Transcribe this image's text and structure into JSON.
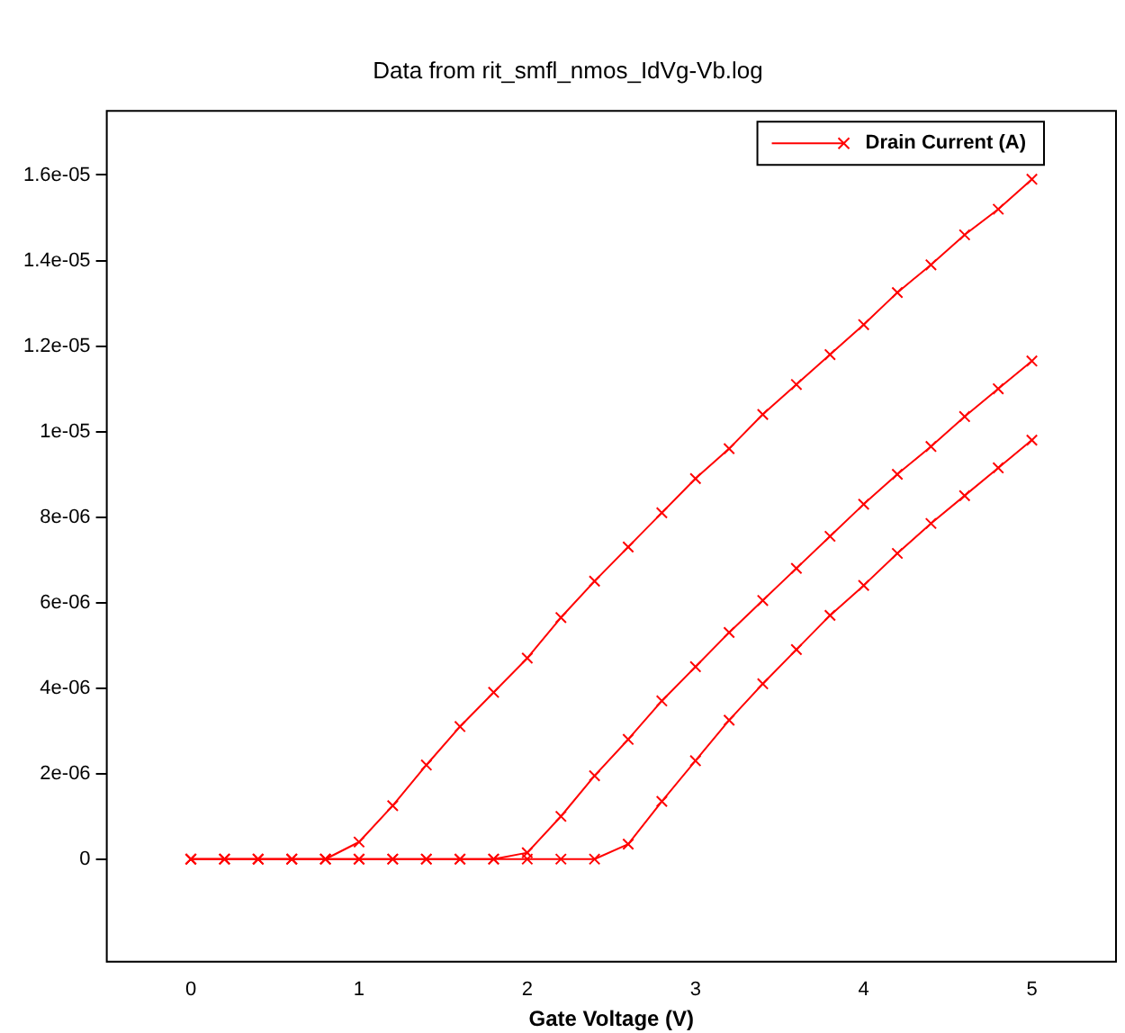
{
  "chart_data": {
    "type": "line",
    "subtitle": "Data from rit_smfl_nmos_IdVg-Vb.log",
    "xlabel": "Gate Voltage (V)",
    "x": [
      0,
      0.2,
      0.4,
      0.6,
      0.8,
      1.0,
      1.2,
      1.4,
      1.6,
      1.8,
      2.0,
      2.2,
      2.4,
      2.6,
      2.8,
      3.0,
      3.2,
      3.4,
      3.6,
      3.8,
      4.0,
      4.2,
      4.4,
      4.6,
      4.8,
      5.0
    ],
    "series": [
      {
        "name": "Drain Current (A)",
        "color": "#ff0000",
        "values": [
          0,
          0,
          0,
          0,
          0,
          4e-07,
          1.25e-06,
          2.2e-06,
          3.1e-06,
          3.9e-06,
          4.7e-06,
          5.65e-06,
          6.5e-06,
          7.3e-06,
          8.1e-06,
          8.9e-06,
          9.6e-06,
          1.04e-05,
          1.11e-05,
          1.18e-05,
          1.25e-05,
          1.325e-05,
          1.39e-05,
          1.46e-05,
          1.52e-05,
          1.59e-05
        ]
      },
      {
        "color": "#ff0000",
        "values": [
          0,
          0,
          0,
          0,
          0,
          0,
          0,
          0,
          0,
          0,
          1.5e-07,
          1e-06,
          1.95e-06,
          2.8e-06,
          3.7e-06,
          4.5e-06,
          5.3e-06,
          6.05e-06,
          6.8e-06,
          7.55e-06,
          8.3e-06,
          9e-06,
          9.65e-06,
          1.035e-05,
          1.1e-05,
          1.165e-05
        ]
      },
      {
        "color": "#ff0000",
        "values": [
          0,
          0,
          0,
          0,
          0,
          0,
          0,
          0,
          0,
          0,
          0,
          0,
          0,
          3.5e-07,
          1.35e-06,
          2.3e-06,
          3.25e-06,
          4.1e-06,
          4.9e-06,
          5.7e-06,
          6.4e-06,
          7.15e-06,
          7.85e-06,
          8.5e-06,
          9.15e-06,
          9.8e-06
        ]
      }
    ],
    "xlim": [
      -0.5,
      5.5
    ],
    "xticks": [
      0,
      1,
      2,
      3,
      4,
      5
    ],
    "ylim": [
      -2.4e-06,
      1.75e-05
    ],
    "yticks": [
      0,
      {
        "value": 2e-06,
        "label": "2e-06"
      },
      {
        "value": 4e-06,
        "label": "4e-06"
      },
      {
        "value": 6e-06,
        "label": "6e-06"
      },
      {
        "value": 8e-06,
        "label": "8e-06"
      },
      {
        "value": 1e-05,
        "label": "1e-05"
      },
      {
        "value": 1.2e-05,
        "label": "1.2e-05"
      },
      {
        "value": 1.4e-05,
        "label": "1.4e-05"
      },
      {
        "value": 1.6e-05,
        "label": "1.6e-05"
      }
    ],
    "legend": "top right",
    "marker": "cross",
    "line_style": "solid"
  }
}
